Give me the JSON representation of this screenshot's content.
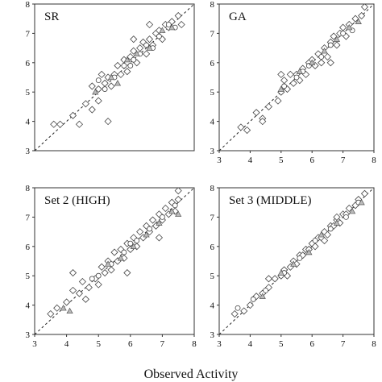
{
  "figure": {
    "xlabel": "Observed Activity"
  },
  "chart_data": [
    {
      "panel": "top-left-partial",
      "type": "scatter",
      "title": "",
      "xlim": [
        3,
        8
      ],
      "ylim": [
        3,
        8
      ],
      "xticks": [
        "8"
      ],
      "yticks": [],
      "series": [
        {
          "marker": "diamond",
          "points": [
            [
              7.4,
              7.3
            ],
            [
              7.6,
              7.7
            ],
            [
              7.8,
              7.5
            ],
            [
              7.2,
              7.0
            ],
            [
              7.5,
              6.7
            ]
          ]
        }
      ]
    },
    {
      "panel": "top-middle",
      "type": "scatter",
      "title": "SR",
      "xlim": [
        3,
        8
      ],
      "ylim": [
        3,
        8
      ],
      "grid": false,
      "diagonal": true,
      "xticks": [],
      "yticks": [
        "3",
        "4",
        "5",
        "6",
        "7",
        "8"
      ],
      "series": [
        {
          "marker": "diamond",
          "points": [
            [
              3.6,
              3.9
            ],
            [
              3.8,
              3.9
            ],
            [
              4.2,
              4.2
            ],
            [
              4.4,
              3.9
            ],
            [
              4.6,
              4.6
            ],
            [
              4.8,
              4.4
            ],
            [
              5.0,
              4.7
            ],
            [
              5.0,
              5.1
            ],
            [
              5.1,
              5.6
            ],
            [
              5.2,
              5.3
            ],
            [
              5.3,
              5.5
            ],
            [
              5.4,
              5.2
            ],
            [
              5.5,
              5.6
            ],
            [
              5.6,
              5.9
            ],
            [
              5.7,
              5.6
            ],
            [
              5.8,
              6.1
            ],
            [
              5.9,
              5.7
            ],
            [
              6.0,
              6.2
            ],
            [
              6.1,
              6.4
            ],
            [
              6.2,
              6.0
            ],
            [
              6.3,
              6.5
            ],
            [
              6.4,
              6.7
            ],
            [
              6.5,
              6.3
            ],
            [
              6.6,
              6.8
            ],
            [
              6.7,
              6.6
            ],
            [
              6.8,
              7.0
            ],
            [
              6.9,
              7.1
            ],
            [
              7.0,
              6.8
            ],
            [
              7.1,
              7.3
            ],
            [
              7.2,
              7.2
            ],
            [
              7.3,
              7.4
            ],
            [
              7.5,
              7.6
            ],
            [
              7.6,
              7.3
            ],
            [
              4.8,
              5.2
            ],
            [
              5.3,
              4.0
            ],
            [
              6.1,
              6.8
            ],
            [
              6.6,
              7.3
            ]
          ]
        },
        {
          "marker": "circle",
          "points": [
            [
              5.2,
              5.1
            ],
            [
              5.5,
              5.5
            ],
            [
              5.8,
              5.9
            ],
            [
              6.0,
              5.9
            ],
            [
              6.3,
              6.3
            ],
            [
              6.5,
              6.6
            ],
            [
              6.9,
              6.9
            ],
            [
              7.2,
              7.3
            ],
            [
              7.4,
              7.2
            ],
            [
              5.0,
              5.4
            ],
            [
              6.1,
              6.1
            ],
            [
              6.7,
              6.5
            ]
          ]
        },
        {
          "marker": "triangle",
          "points": [
            [
              4.9,
              5.0
            ],
            [
              5.6,
              5.3
            ],
            [
              5.9,
              6.1
            ],
            [
              6.2,
              6.3
            ],
            [
              6.6,
              6.5
            ],
            [
              7.0,
              7.1
            ],
            [
              7.3,
              7.2
            ],
            [
              5.4,
              5.5
            ]
          ]
        }
      ]
    },
    {
      "panel": "top-right",
      "type": "scatter",
      "title": "GA",
      "xlim": [
        3,
        8
      ],
      "ylim": [
        3,
        8
      ],
      "grid": false,
      "diagonal": true,
      "xticks": [
        "3",
        "4",
        "5",
        "6",
        "7",
        "8"
      ],
      "yticks": [
        "3",
        "4",
        "5",
        "6",
        "7",
        "8"
      ],
      "series": [
        {
          "marker": "diamond",
          "points": [
            [
              3.7,
              3.8
            ],
            [
              3.9,
              3.7
            ],
            [
              4.2,
              4.3
            ],
            [
              4.4,
              4.1
            ],
            [
              4.6,
              4.5
            ],
            [
              4.9,
              4.7
            ],
            [
              5.0,
              5.0
            ],
            [
              5.1,
              5.4
            ],
            [
              5.2,
              5.1
            ],
            [
              5.3,
              5.6
            ],
            [
              5.4,
              5.3
            ],
            [
              5.5,
              5.6
            ],
            [
              5.6,
              5.4
            ],
            [
              5.7,
              5.8
            ],
            [
              5.8,
              5.6
            ],
            [
              5.9,
              6.0
            ],
            [
              6.0,
              6.1
            ],
            [
              6.1,
              5.9
            ],
            [
              6.2,
              6.3
            ],
            [
              6.3,
              6.0
            ],
            [
              6.4,
              6.5
            ],
            [
              6.5,
              6.2
            ],
            [
              6.6,
              6.7
            ],
            [
              6.7,
              6.9
            ],
            [
              6.8,
              6.6
            ],
            [
              6.9,
              7.0
            ],
            [
              7.0,
              7.2
            ],
            [
              7.1,
              6.9
            ],
            [
              7.2,
              7.3
            ],
            [
              7.4,
              7.5
            ],
            [
              7.6,
              7.6
            ],
            [
              4.4,
              4.0
            ],
            [
              5.0,
              5.6
            ],
            [
              6.6,
              6.0
            ],
            [
              7.7,
              7.9
            ]
          ]
        },
        {
          "marker": "circle",
          "points": [
            [
              5.1,
              5.2
            ],
            [
              5.5,
              5.5
            ],
            [
              5.9,
              5.9
            ],
            [
              6.3,
              6.2
            ],
            [
              6.6,
              6.6
            ],
            [
              7.0,
              7.0
            ],
            [
              7.3,
              7.1
            ],
            [
              5.7,
              5.7
            ]
          ]
        },
        {
          "marker": "triangle",
          "points": [
            [
              5.0,
              5.1
            ],
            [
              5.6,
              5.7
            ],
            [
              6.0,
              6.0
            ],
            [
              6.4,
              6.4
            ],
            [
              6.8,
              6.8
            ],
            [
              7.2,
              7.2
            ],
            [
              7.5,
              7.4
            ]
          ]
        }
      ]
    },
    {
      "panel": "bottom-left-partial",
      "type": "scatter",
      "title": "",
      "xlim": [
        3,
        8
      ],
      "ylim": [
        3,
        8
      ],
      "xticks": [
        "8"
      ],
      "yticks": [],
      "series": [
        {
          "marker": "diamond",
          "points": [
            [
              7.7,
              7.5
            ],
            [
              7.8,
              7.7
            ],
            [
              7.6,
              7.3
            ],
            [
              7.9,
              7.6
            ],
            [
              7.4,
              6.3
            ]
          ]
        }
      ]
    },
    {
      "panel": "bottom-middle",
      "type": "scatter",
      "title": "Set 2 (HIGH)",
      "xlim": [
        3,
        8
      ],
      "ylim": [
        3,
        8
      ],
      "grid": false,
      "diagonal": true,
      "xticks": [
        "3",
        "4",
        "5",
        "6",
        "7",
        "8"
      ],
      "yticks": [
        "3",
        "4",
        "5",
        "6",
        "7",
        "8"
      ],
      "series": [
        {
          "marker": "diamond",
          "points": [
            [
              3.5,
              3.7
            ],
            [
              3.7,
              3.9
            ],
            [
              4.0,
              4.1
            ],
            [
              4.2,
              4.5
            ],
            [
              4.4,
              4.4
            ],
            [
              4.5,
              4.8
            ],
            [
              4.7,
              4.6
            ],
            [
              4.9,
              4.9
            ],
            [
              5.0,
              4.7
            ],
            [
              5.1,
              5.3
            ],
            [
              5.2,
              5.1
            ],
            [
              5.3,
              5.5
            ],
            [
              5.4,
              5.2
            ],
            [
              5.5,
              5.8
            ],
            [
              5.6,
              5.5
            ],
            [
              5.7,
              5.9
            ],
            [
              5.8,
              5.6
            ],
            [
              5.9,
              6.1
            ],
            [
              6.0,
              5.9
            ],
            [
              6.1,
              6.3
            ],
            [
              6.2,
              6.0
            ],
            [
              6.3,
              6.5
            ],
            [
              6.4,
              6.3
            ],
            [
              6.5,
              6.7
            ],
            [
              6.6,
              6.5
            ],
            [
              6.7,
              6.9
            ],
            [
              6.8,
              6.7
            ],
            [
              6.9,
              7.1
            ],
            [
              7.0,
              6.9
            ],
            [
              7.1,
              7.3
            ],
            [
              7.2,
              7.1
            ],
            [
              7.3,
              7.5
            ],
            [
              7.4,
              7.2
            ],
            [
              7.5,
              7.6
            ],
            [
              4.2,
              5.1
            ],
            [
              4.6,
              4.2
            ],
            [
              5.9,
              5.1
            ],
            [
              6.9,
              6.3
            ],
            [
              7.5,
              7.9
            ]
          ]
        },
        {
          "marker": "circle",
          "points": [
            [
              5.0,
              5.0
            ],
            [
              5.4,
              5.4
            ],
            [
              5.8,
              5.8
            ],
            [
              6.2,
              6.2
            ],
            [
              6.6,
              6.6
            ],
            [
              7.0,
              7.0
            ],
            [
              7.4,
              7.4
            ],
            [
              4.8,
              4.9
            ],
            [
              6.0,
              6.1
            ]
          ]
        },
        {
          "marker": "triangle",
          "points": [
            [
              3.9,
              3.9
            ],
            [
              4.1,
              3.8
            ],
            [
              5.3,
              5.4
            ],
            [
              5.7,
              5.6
            ],
            [
              6.1,
              6.0
            ],
            [
              6.5,
              6.4
            ],
            [
              6.9,
              6.8
            ],
            [
              7.3,
              7.2
            ],
            [
              7.5,
              7.1
            ]
          ]
        }
      ]
    },
    {
      "panel": "bottom-right",
      "type": "scatter",
      "title": "Set 3 (MIDDLE)",
      "xlim": [
        3,
        8
      ],
      "ylim": [
        3,
        8
      ],
      "grid": false,
      "diagonal": true,
      "xticks": [
        "3",
        "4",
        "5",
        "6",
        "7",
        "8"
      ],
      "yticks": [
        "3",
        "4",
        "5",
        "6",
        "7",
        "8"
      ],
      "series": [
        {
          "marker": "diamond",
          "points": [
            [
              3.5,
              3.7
            ],
            [
              3.8,
              3.8
            ],
            [
              4.0,
              4.0
            ],
            [
              4.2,
              4.3
            ],
            [
              4.4,
              4.4
            ],
            [
              4.6,
              4.6
            ],
            [
              4.8,
              4.9
            ],
            [
              5.0,
              5.0
            ],
            [
              5.1,
              5.2
            ],
            [
              5.3,
              5.3
            ],
            [
              5.4,
              5.5
            ],
            [
              5.5,
              5.4
            ],
            [
              5.6,
              5.7
            ],
            [
              5.7,
              5.7
            ],
            [
              5.8,
              5.9
            ],
            [
              5.9,
              5.9
            ],
            [
              6.0,
              6.1
            ],
            [
              6.1,
              6.0
            ],
            [
              6.2,
              6.3
            ],
            [
              6.3,
              6.3
            ],
            [
              6.4,
              6.5
            ],
            [
              6.5,
              6.4
            ],
            [
              6.6,
              6.7
            ],
            [
              6.7,
              6.7
            ],
            [
              6.8,
              6.9
            ],
            [
              6.9,
              6.8
            ],
            [
              7.0,
              7.1
            ],
            [
              7.1,
              7.1
            ],
            [
              7.2,
              7.3
            ],
            [
              7.4,
              7.4
            ],
            [
              7.5,
              7.6
            ],
            [
              7.7,
              7.8
            ],
            [
              4.6,
              4.9
            ],
            [
              5.2,
              5.0
            ],
            [
              6.4,
              6.2
            ],
            [
              6.8,
              7.0
            ]
          ]
        },
        {
          "marker": "circle",
          "points": [
            [
              3.6,
              3.9
            ],
            [
              4.1,
              4.2
            ],
            [
              4.5,
              4.5
            ],
            [
              5.1,
              5.1
            ],
            [
              5.6,
              5.6
            ],
            [
              6.1,
              6.2
            ],
            [
              6.6,
              6.6
            ],
            [
              7.1,
              7.0
            ],
            [
              7.5,
              7.5
            ]
          ]
        },
        {
          "marker": "triangle",
          "points": [
            [
              4.4,
              4.3
            ],
            [
              5.0,
              5.1
            ],
            [
              5.4,
              5.4
            ],
            [
              5.9,
              5.8
            ],
            [
              6.3,
              6.4
            ],
            [
              6.8,
              6.8
            ],
            [
              7.3,
              7.2
            ],
            [
              7.6,
              7.5
            ]
          ]
        }
      ]
    }
  ]
}
